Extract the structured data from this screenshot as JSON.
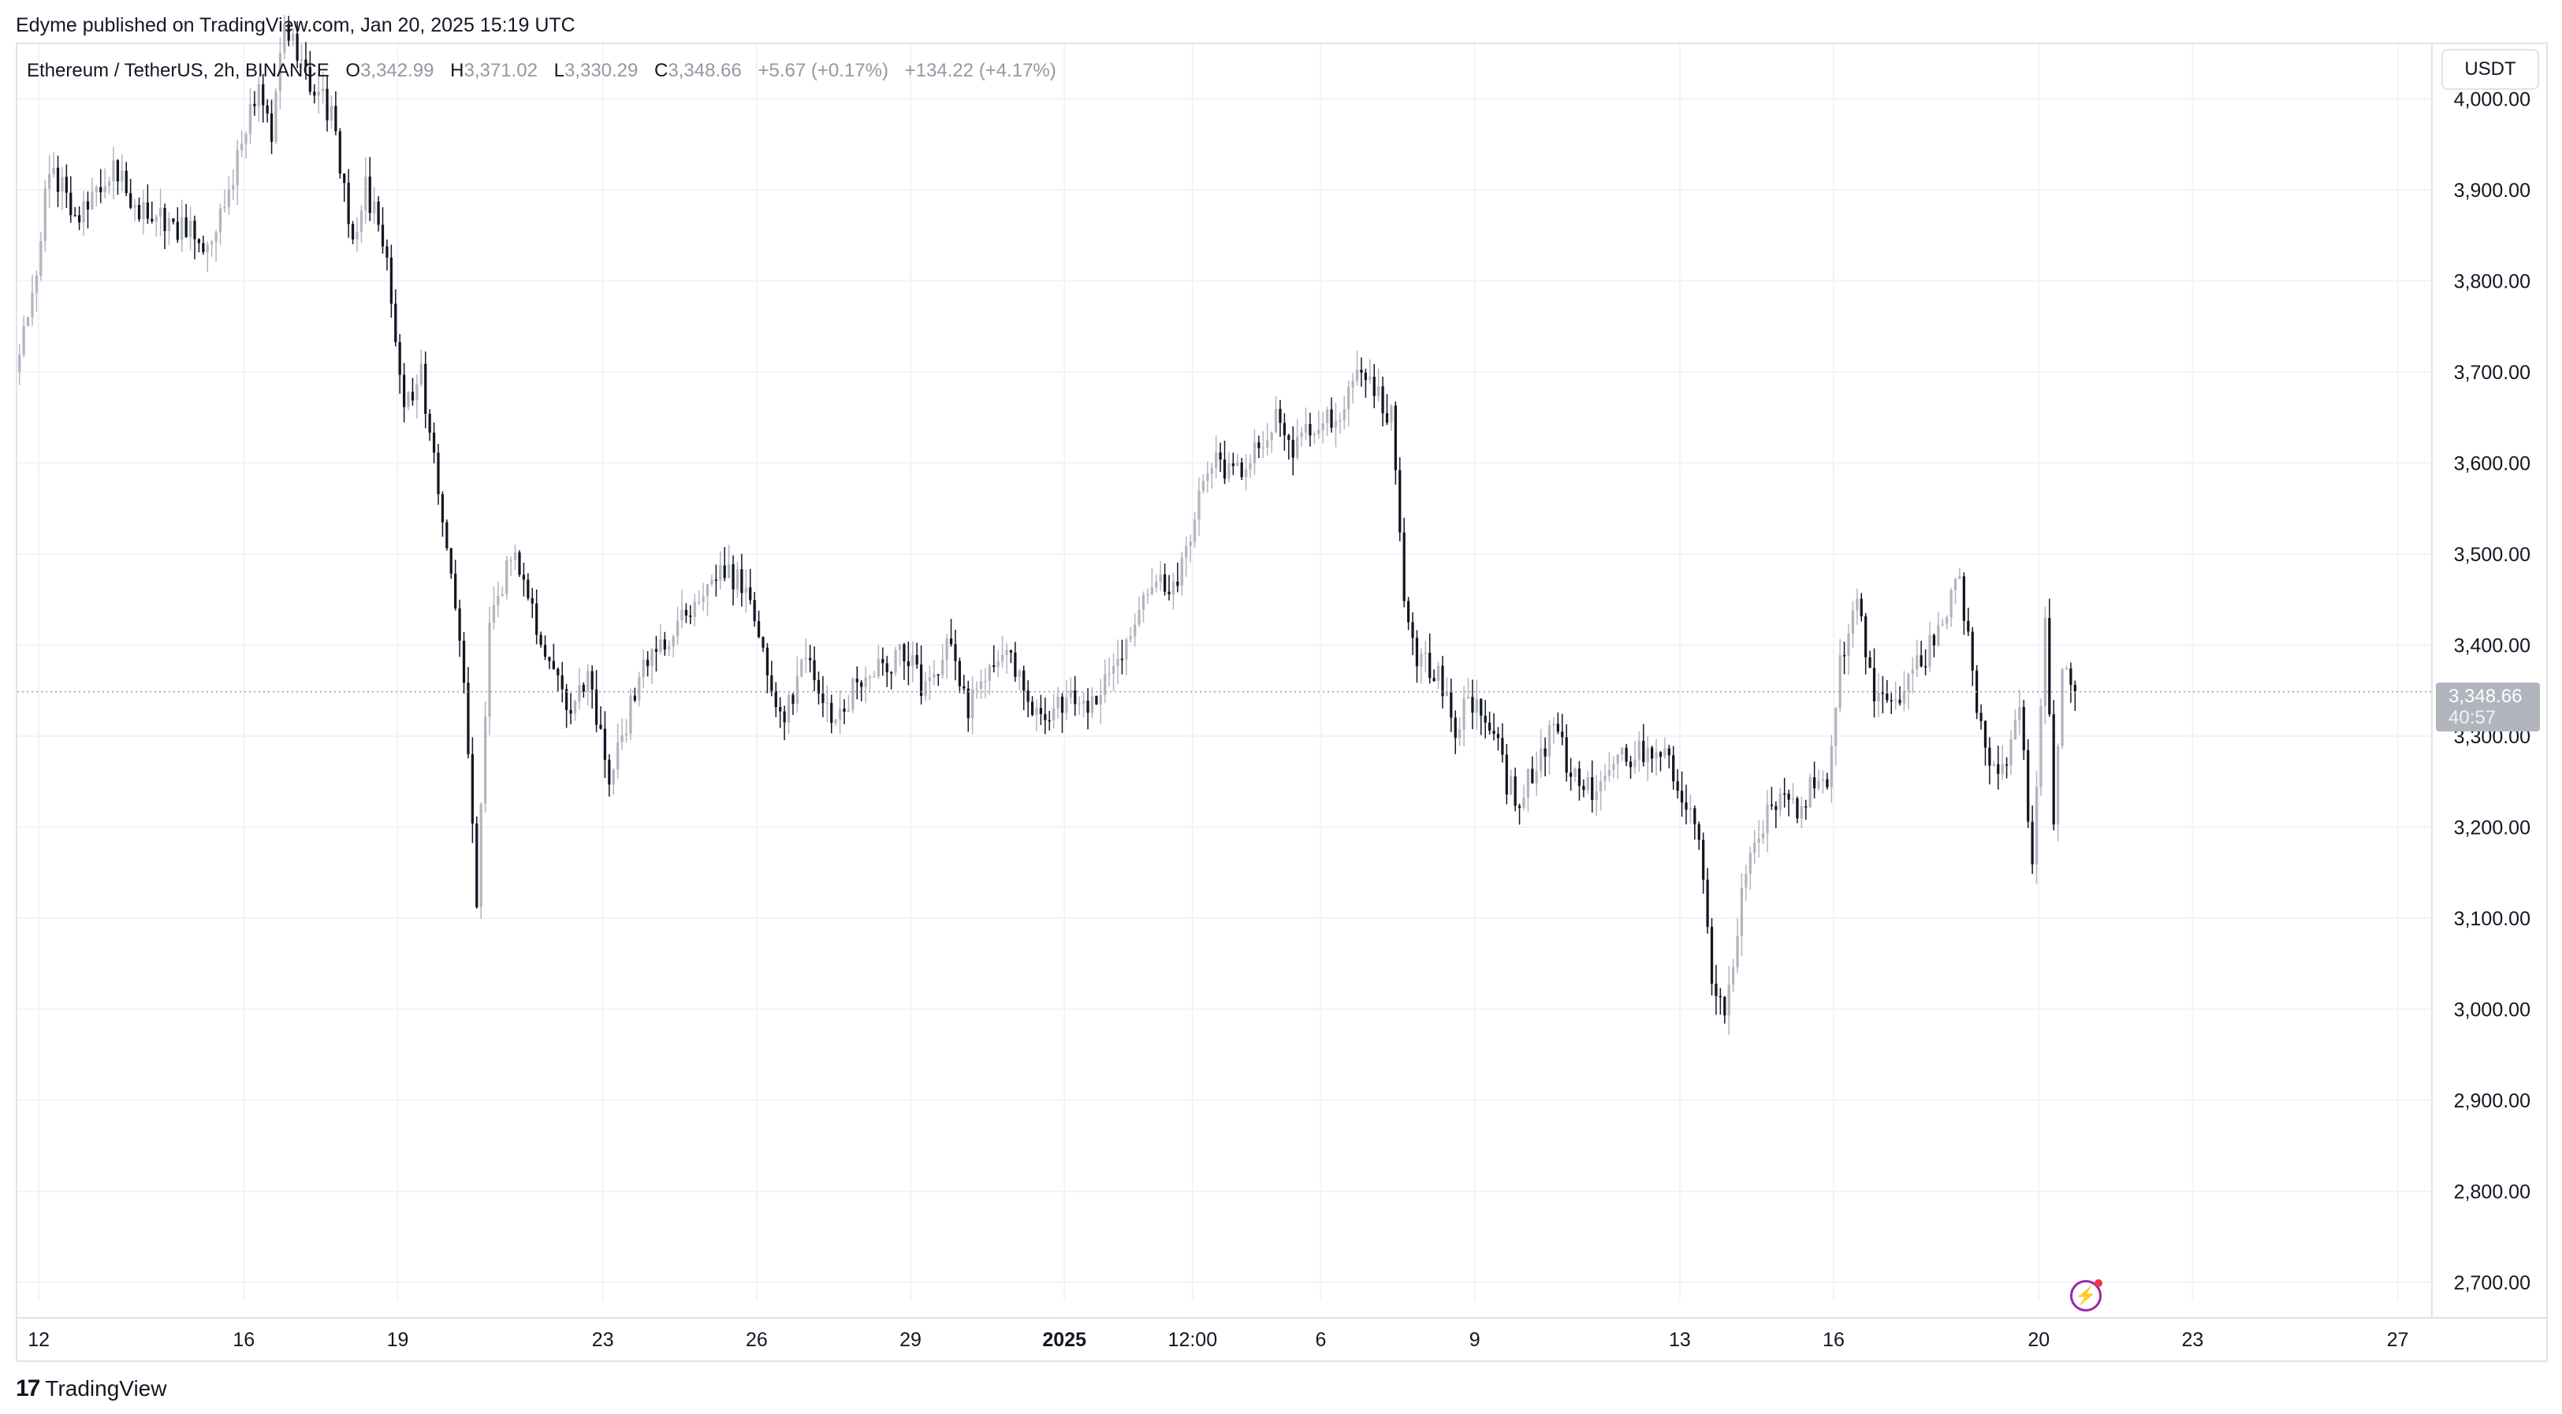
{
  "publisher_line": "Edyme published on TradingView.com, Jan 20, 2025 15:19 UTC",
  "legend": {
    "symbol": "Ethereum / TetherUS, 2h, BINANCE",
    "o_label": "O",
    "o_value": "3,342.99",
    "h_label": "H",
    "h_value": "3,371.02",
    "l_label": "L",
    "l_value": "3,330.29",
    "c_label": "C",
    "c_value": "3,348.66",
    "change": "+5.67 (+0.17%)",
    "change2": "+134.22 (+4.17%)"
  },
  "currency": "USDT",
  "last_price": {
    "price": "3,348.66",
    "countdown": "40:57"
  },
  "branding": {
    "logo_mark": "17",
    "logo_text": "TradingView"
  },
  "colors": {
    "bull": "#b2b5be",
    "bear": "#131722",
    "grid": "#f0f3fa",
    "axis_text": "#131722",
    "price_line": "#9598a1",
    "price_label": "#b2b5be",
    "bolt": "#9c27b0"
  },
  "icons": {
    "bolt": "lightning-bolt-icon"
  },
  "chart_data": {
    "type": "candlestick",
    "title": "",
    "xlabel": "",
    "ylabel": "",
    "ylim": [
      2680,
      4060
    ],
    "yticks": [
      2700,
      2800,
      2900,
      3000,
      3100,
      3200,
      3300,
      3400,
      3500,
      3600,
      3700,
      3800,
      3900,
      4000
    ],
    "ytick_labels": [
      "2,700.00",
      "2,800.00",
      "2,900.00",
      "3,000.00",
      "3,100.00",
      "3,200.00",
      "3,300.00",
      "3,400.00",
      "3,500.00",
      "3,600.00",
      "3,700.00",
      "3,800.00",
      "3,900.00",
      "4,000.00"
    ],
    "x_start": "2024-12-11 14:00",
    "xlim": [
      "2024-12-11 14:00",
      "2025-01-27 16:00"
    ],
    "xticks": [
      {
        "at": "2024-12-12",
        "label": "12"
      },
      {
        "at": "2024-12-16",
        "label": "16"
      },
      {
        "at": "2024-12-19",
        "label": "19"
      },
      {
        "at": "2024-12-23",
        "label": "23"
      },
      {
        "at": "2024-12-26",
        "label": "26"
      },
      {
        "at": "2024-12-29",
        "label": "29"
      },
      {
        "at": "2025-01-01",
        "label": "2025"
      },
      {
        "at": "2025-01-03 12:00",
        "label": "12:00"
      },
      {
        "at": "2025-01-06",
        "label": "6"
      },
      {
        "at": "2025-01-09",
        "label": "9"
      },
      {
        "at": "2025-01-13",
        "label": "13"
      },
      {
        "at": "2025-01-16",
        "label": "16"
      },
      {
        "at": "2025-01-20",
        "label": "20"
      },
      {
        "at": "2025-01-23",
        "label": "23"
      },
      {
        "at": "2025-01-27",
        "label": "27"
      }
    ],
    "last_price": 3348.66,
    "grid": true,
    "path": [
      [
        "2024-12-11 14:00",
        3700
      ],
      [
        "2024-12-12",
        3820
      ],
      [
        "2024-12-12 06:00",
        3930
      ],
      [
        "2024-12-12 18:00",
        3870
      ],
      [
        "2024-12-13 12:00",
        3920
      ],
      [
        "2024-12-14",
        3880
      ],
      [
        "2024-12-14 18:00",
        3860
      ],
      [
        "2024-12-15 10:00",
        3840
      ],
      [
        "2024-12-15 22:00",
        3930
      ],
      [
        "2024-12-16 08:00",
        4020
      ],
      [
        "2024-12-16 14:00",
        3960
      ],
      [
        "2024-12-16 20:00",
        4080
      ],
      [
        "2024-12-17 08:00",
        4020
      ],
      [
        "2024-12-17 18:00",
        3980
      ],
      [
        "2024-12-18 04:00",
        3850
      ],
      [
        "2024-12-18 10:00",
        3900
      ],
      [
        "2024-12-18 18:00",
        3850
      ],
      [
        "2024-12-19 04:00",
        3660
      ],
      [
        "2024-12-19 12:00",
        3700
      ],
      [
        "2024-12-20 00:00",
        3500
      ],
      [
        "2024-12-20 08:00",
        3360
      ],
      [
        "2024-12-20 14:00",
        3110
      ],
      [
        "2024-12-20 20:00",
        3420
      ],
      [
        "2024-12-21 08:00",
        3510
      ],
      [
        "2024-12-21 18:00",
        3420
      ],
      [
        "2024-12-22 08:00",
        3330
      ],
      [
        "2024-12-22 18:00",
        3370
      ],
      [
        "2024-12-23 04:00",
        3260
      ],
      [
        "2024-12-23 10:00",
        3300
      ],
      [
        "2024-12-23 20:00",
        3380
      ],
      [
        "2024-12-24 08:00",
        3410
      ],
      [
        "2024-12-24 20:00",
        3440
      ],
      [
        "2024-12-25 06:00",
        3480
      ],
      [
        "2024-12-25 20:00",
        3470
      ],
      [
        "2024-12-26 04:00",
        3390
      ],
      [
        "2024-12-26 12:00",
        3320
      ],
      [
        "2024-12-27 00:00",
        3380
      ],
      [
        "2024-12-27 12:00",
        3320
      ],
      [
        "2024-12-28 02:00",
        3360
      ],
      [
        "2024-12-28 12:00",
        3380
      ],
      [
        "2024-12-28 22:00",
        3390
      ],
      [
        "2024-12-29 08:00",
        3350
      ],
      [
        "2024-12-29 18:00",
        3400
      ],
      [
        "2024-12-30 04:00",
        3330
      ],
      [
        "2024-12-30 14:00",
        3380
      ],
      [
        "2024-12-31 00:00",
        3380
      ],
      [
        "2024-12-31 08:00",
        3340
      ],
      [
        "2024-12-31 18:00",
        3330
      ],
      [
        "2025-01-01 02:00",
        3340
      ],
      [
        "2025-01-01 12:00",
        3335
      ],
      [
        "2025-01-02 00:00",
        3370
      ],
      [
        "2025-01-02 08:00",
        3420
      ],
      [
        "2025-01-02 18:00",
        3460
      ],
      [
        "2025-01-03 06:00",
        3470
      ],
      [
        "2025-01-03 16:00",
        3560
      ],
      [
        "2025-01-04",
        3600
      ],
      [
        "2025-01-04 10:00",
        3590
      ],
      [
        "2025-01-04 18:00",
        3620
      ],
      [
        "2025-01-05 04:00",
        3650
      ],
      [
        "2025-01-05 12:00",
        3610
      ],
      [
        "2025-01-05 22:00",
        3640
      ],
      [
        "2025-01-06 10:00",
        3660
      ],
      [
        "2025-01-06 18:00",
        3700
      ],
      [
        "2025-01-07 02:00",
        3680
      ],
      [
        "2025-01-07 10:00",
        3650
      ],
      [
        "2025-01-07 16:00",
        3460
      ],
      [
        "2025-01-07 22:00",
        3390
      ],
      [
        "2025-01-08 08:00",
        3370
      ],
      [
        "2025-01-08 16:00",
        3300
      ],
      [
        "2025-01-08 22:00",
        3340
      ],
      [
        "2025-01-09 08:00",
        3320
      ],
      [
        "2025-01-09 16:00",
        3250
      ],
      [
        "2025-01-09 22:00",
        3230
      ],
      [
        "2025-01-10 06:00",
        3270
      ],
      [
        "2025-01-10 14:00",
        3310
      ],
      [
        "2025-01-10 22:00",
        3260
      ],
      [
        "2025-01-11 08:00",
        3240
      ],
      [
        "2025-01-11 18:00",
        3280
      ],
      [
        "2025-01-12 04:00",
        3280
      ],
      [
        "2025-01-12 14:00",
        3290
      ],
      [
        "2025-01-12 22:00",
        3260
      ],
      [
        "2025-01-13 04:00",
        3230
      ],
      [
        "2025-01-13 10:00",
        3200
      ],
      [
        "2025-01-13 16:00",
        3030
      ],
      [
        "2025-01-13 22:00",
        3000
      ],
      [
        "2025-01-14 06:00",
        3120
      ],
      [
        "2025-01-14 14:00",
        3200
      ],
      [
        "2025-01-14 22:00",
        3230
      ],
      [
        "2025-01-15 08:00",
        3220
      ],
      [
        "2025-01-15 16:00",
        3250
      ],
      [
        "2025-01-15 22:00",
        3240
      ],
      [
        "2025-01-16 04:00",
        3380
      ],
      [
        "2025-01-16 12:00",
        3450
      ],
      [
        "2025-01-16 20:00",
        3350
      ],
      [
        "2025-01-17 04:00",
        3330
      ],
      [
        "2025-01-17 12:00",
        3370
      ],
      [
        "2025-01-17 20:00",
        3390
      ],
      [
        "2025-01-18 04:00",
        3430
      ],
      [
        "2025-01-18 12:00",
        3470
      ],
      [
        "2025-01-18 20:00",
        3340
      ],
      [
        "2025-01-19 04:00",
        3260
      ],
      [
        "2025-01-19 10:00",
        3280
      ],
      [
        "2025-01-19 16:00",
        3330
      ],
      [
        "2025-01-19 22:00",
        3160
      ],
      [
        "2025-01-20 04:00",
        3420
      ],
      [
        "2025-01-20 08:00",
        3200
      ],
      [
        "2025-01-20 12:00",
        3380
      ],
      [
        "2025-01-20 16:00",
        3348.66
      ]
    ]
  }
}
